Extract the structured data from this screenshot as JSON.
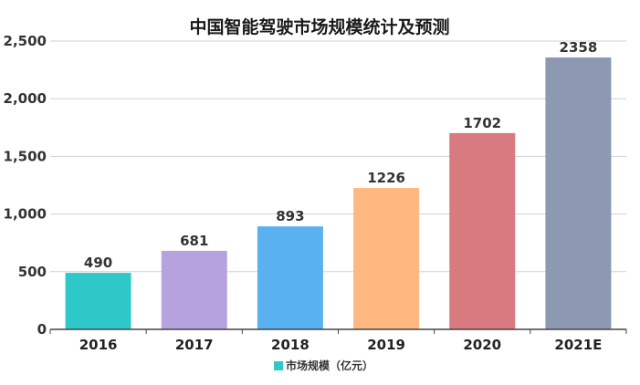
{
  "chart_data": {
    "type": "bar",
    "title": "中国智能驾驶市场规模统计及预测",
    "categories": [
      "2016",
      "2017",
      "2018",
      "2019",
      "2020",
      "2021E"
    ],
    "series": [
      {
        "name": "市场规模（亿元）",
        "values": [
          490,
          681,
          893,
          1226,
          1702,
          2358
        ],
        "colors": [
          "#2ec8c8",
          "#b6a2de",
          "#5ab1ef",
          "#ffb980",
          "#d87a80",
          "#8d98b3"
        ]
      }
    ],
    "data_labels": [
      "490",
      "681",
      "893",
      "1226",
      "1702",
      "2358"
    ],
    "ylim": [
      0,
      2500
    ],
    "yticks": [
      0,
      500,
      1000,
      1500,
      2000,
      2500
    ],
    "ytick_labels": [
      "0",
      "500",
      "1,000",
      "1,500",
      "2,000",
      "2,500"
    ],
    "grid": true,
    "legend_position": "bottom-center",
    "xlabel": "",
    "ylabel": ""
  }
}
